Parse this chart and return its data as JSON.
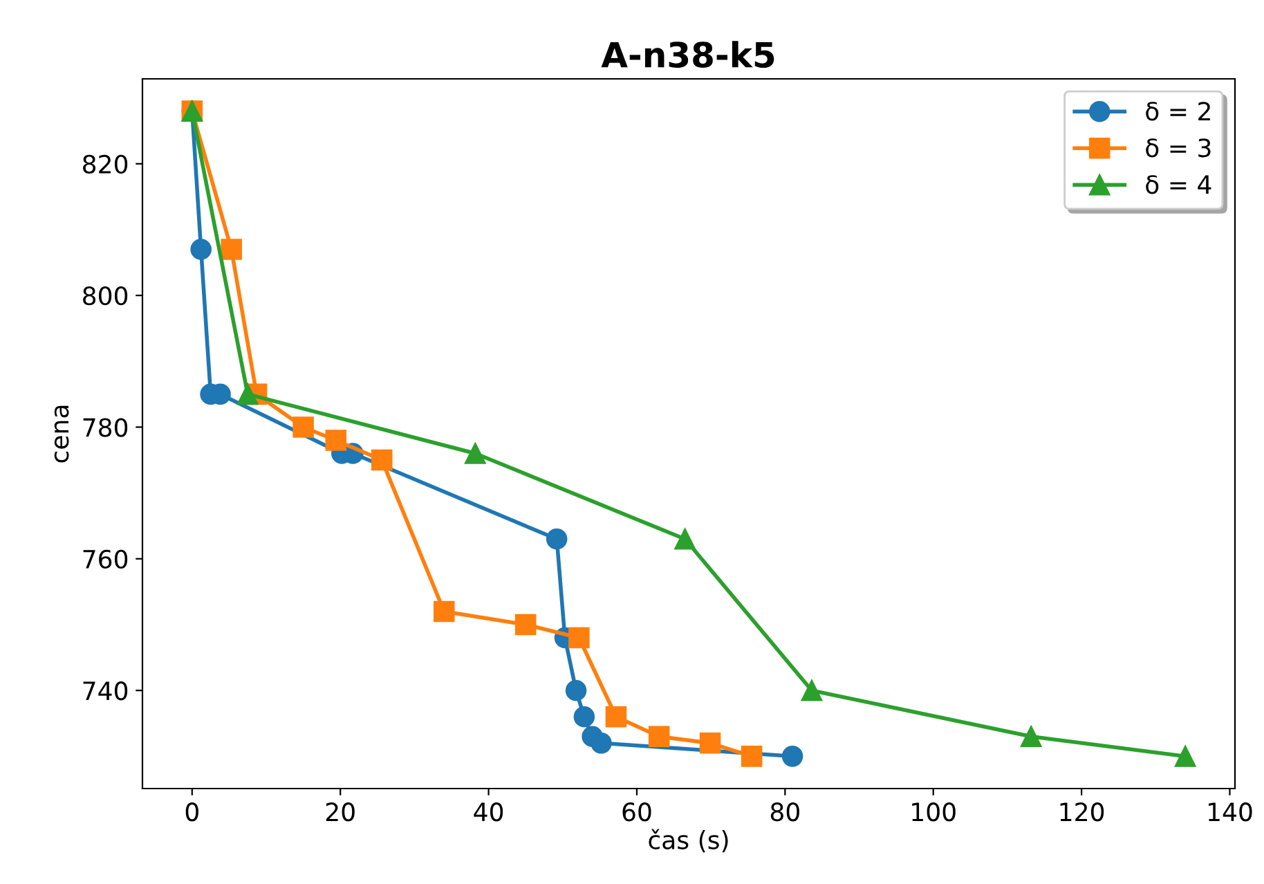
{
  "chart_data": {
    "type": "line",
    "title": "A-n38-k5",
    "xlabel": "čas (s)",
    "ylabel": "cena",
    "xlim": [
      -6.7,
      140.7
    ],
    "ylim": [
      725.1,
      832.9
    ],
    "xticks": [
      0,
      20,
      40,
      60,
      80,
      100,
      120,
      140
    ],
    "yticks": [
      740,
      760,
      780,
      800,
      820
    ],
    "grid": false,
    "legend": "top right",
    "line_style": "solid",
    "series": [
      {
        "name": "δ = 2",
        "color": "#1f77b4",
        "marker": "circle",
        "x": [
          0,
          1.2,
          2.5,
          3.8,
          20.2,
          21.7,
          49.2,
          50.3,
          51.8,
          52.9,
          54,
          55.2,
          81
        ],
        "values": [
          828,
          807,
          785,
          785,
          776,
          776,
          763,
          748,
          740,
          736,
          733,
          732,
          730
        ]
      },
      {
        "name": "δ = 3",
        "color": "#ff7f0e",
        "marker": "square",
        "x": [
          0,
          5.3,
          8.7,
          15,
          19.4,
          25.6,
          34,
          45,
          52.2,
          57.2,
          63,
          69.9,
          75.5
        ],
        "values": [
          828,
          807,
          785,
          780,
          778,
          775,
          752,
          750,
          748,
          736,
          733,
          732,
          730
        ]
      },
      {
        "name": "δ = 4",
        "color": "#2ca02c",
        "marker": "triangle",
        "x": [
          0,
          7.5,
          38.2,
          66.5,
          83.6,
          113.2,
          134
        ],
        "values": [
          828,
          785,
          776,
          763,
          740,
          733,
          730
        ]
      }
    ]
  }
}
